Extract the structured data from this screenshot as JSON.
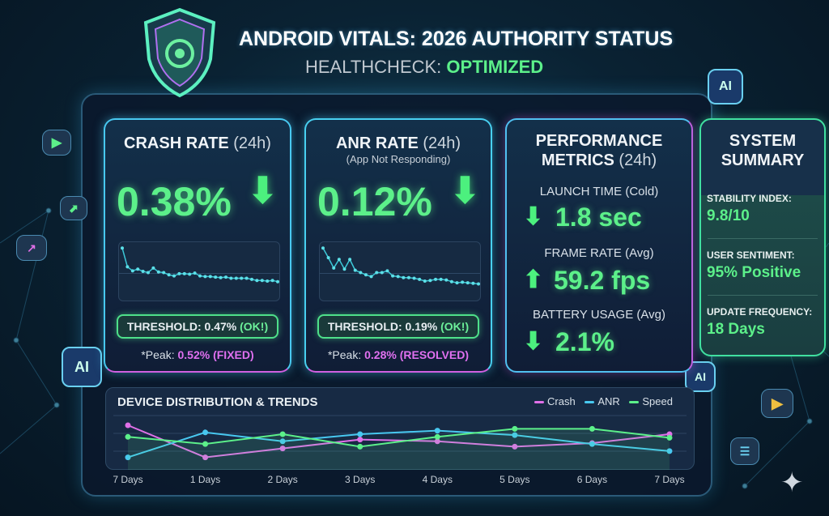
{
  "header": {
    "title": "ANDROID VITALS: 2026 AUTHORITY STATUS",
    "subtitle_prefix": "HEALTHCHECK:",
    "subtitle_status": "OPTIMIZED"
  },
  "icons": {
    "shield": "shield-icon",
    "ai_badge": "AI",
    "play": "play-store-icon",
    "sparkle": "sparkle-icon"
  },
  "crash": {
    "title": "CRASH RATE",
    "period": "(24h)",
    "value": "0.38%",
    "trend": "down",
    "threshold_label": "THRESHOLD: 0.47%",
    "threshold_status": "(OK!)",
    "peak_label": "*Peak:",
    "peak_value": "0.52% (FIXED)",
    "sparkline": [
      0.95,
      0.62,
      0.55,
      0.58,
      0.54,
      0.52,
      0.6,
      0.53,
      0.52,
      0.48,
      0.46,
      0.5,
      0.5,
      0.49,
      0.51,
      0.46,
      0.45,
      0.45,
      0.44,
      0.43,
      0.44,
      0.42,
      0.42,
      0.42,
      0.42,
      0.4,
      0.38,
      0.38,
      0.37,
      0.38,
      0.36
    ]
  },
  "anr": {
    "title": "ANR RATE",
    "period": "(24h)",
    "subtitle": "(App Not Responding)",
    "value": "0.12%",
    "trend": "down",
    "threshold_label": "THRESHOLD: 0.19%",
    "threshold_status": "(OK!)",
    "peak_label": "*Peak:",
    "peak_value": "0.28% (RESOLVED)",
    "sparkline": [
      0.95,
      0.78,
      0.6,
      0.75,
      0.58,
      0.75,
      0.56,
      0.52,
      0.48,
      0.45,
      0.52,
      0.52,
      0.55,
      0.46,
      0.45,
      0.43,
      0.43,
      0.42,
      0.4,
      0.37,
      0.38,
      0.4,
      0.4,
      0.39,
      0.36,
      0.34,
      0.35,
      0.34,
      0.33,
      0.32
    ]
  },
  "performance": {
    "title": "PERFORMANCE",
    "title2": "METRICS",
    "period": "(24h)",
    "metrics": [
      {
        "label": "LAUNCH TIME (Cold)",
        "value": "1.8 sec",
        "trend": "down"
      },
      {
        "label": "FRAME RATE (Avg)",
        "value": "59.2 fps",
        "trend": "up"
      },
      {
        "label": "BATTERY USAGE (Avg)",
        "value": "2.1%",
        "trend": "down"
      }
    ]
  },
  "summary": {
    "title": "SYSTEM",
    "title2": "SUMMARY",
    "items": [
      {
        "label": "STABILITY INDEX:",
        "value": "9.8/10"
      },
      {
        "label": "USER SENTIMENT:",
        "value": "95% Positive"
      },
      {
        "label": "UPDATE FREQUENCY:",
        "value": "18 Days"
      }
    ]
  },
  "chart_data": {
    "type": "line",
    "title": "DEVICE DISTRIBUTION & TRENDS",
    "categories": [
      "7 Days",
      "1 Days",
      "2 Days",
      "3 Days",
      "4 Days",
      "5 Days",
      "6 Days",
      "7 Days"
    ],
    "ylim": [
      0,
      3
    ],
    "grid": true,
    "legend": "top-right",
    "series": [
      {
        "name": "Crash",
        "color": "#e070e8",
        "values": [
          2.5,
          0.7,
          1.2,
          1.7,
          1.6,
          1.3,
          1.5,
          2.0
        ]
      },
      {
        "name": "ANR",
        "color": "#48c8f0",
        "values": [
          0.7,
          2.1,
          1.6,
          2.0,
          2.2,
          1.95,
          1.45,
          1.05
        ]
      },
      {
        "name": "Speed",
        "color": "#5cf08a",
        "values": [
          1.85,
          1.45,
          2.0,
          1.3,
          1.85,
          2.3,
          2.3,
          1.8
        ]
      }
    ]
  }
}
